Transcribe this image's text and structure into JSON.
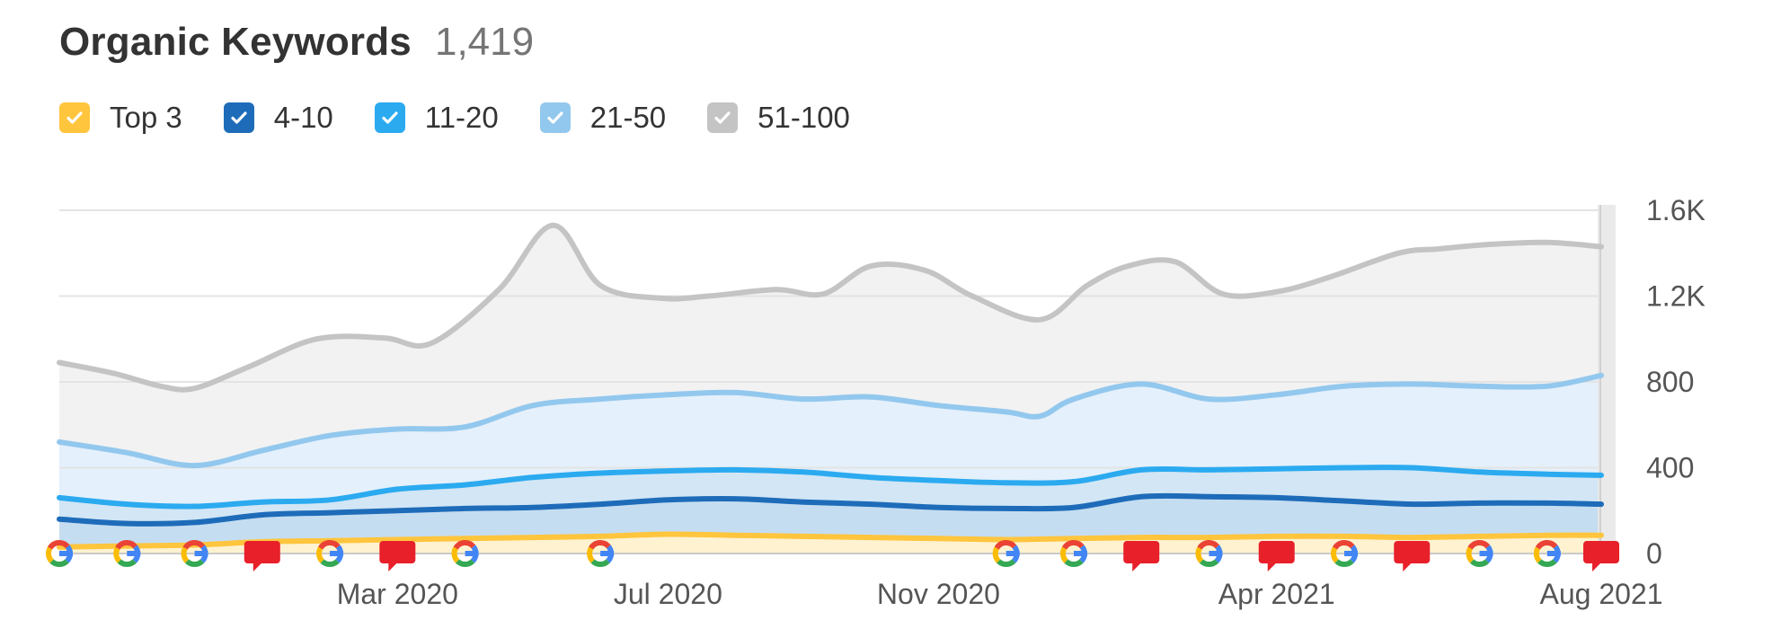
{
  "widget": {
    "title": "Organic Keywords",
    "count": "1,419"
  },
  "legend": [
    {
      "label": "Top 3",
      "color": "#FFC53D",
      "checked": true
    },
    {
      "label": "4-10",
      "color": "#1E6CB9",
      "checked": true
    },
    {
      "label": "11-20",
      "color": "#2BAAF0",
      "checked": true
    },
    {
      "label": "21-50",
      "color": "#93C8EE",
      "checked": true
    },
    {
      "label": "51-100",
      "color": "#C4C4C4",
      "checked": true
    }
  ],
  "icons": {
    "google_update": "google-update-icon",
    "note": "note-icon"
  },
  "chart_data": {
    "type": "area",
    "stacked": false,
    "grid": true,
    "y_axis_position": "right",
    "ylim": [
      0,
      1600
    ],
    "yticks": [
      {
        "value": 0,
        "label": "0"
      },
      {
        "value": 400,
        "label": "400"
      },
      {
        "value": 800,
        "label": "800"
      },
      {
        "value": 1200,
        "label": "1.2K"
      },
      {
        "value": 1600,
        "label": "1.6K"
      }
    ],
    "xlim": [
      0,
      22.8
    ],
    "xticks": [
      {
        "value": 5,
        "label": "Mar 2020"
      },
      {
        "value": 9,
        "label": "Jul 2020"
      },
      {
        "value": 13,
        "label": "Nov 2020"
      },
      {
        "value": 18,
        "label": "Apr 2021"
      },
      {
        "value": 22.8,
        "label": "Aug 2021"
      }
    ],
    "series": [
      {
        "name": "51-100",
        "color": "#C4C4C4",
        "fill": "#F2F2F2",
        "x": [
          0,
          0.8,
          1.5,
          2,
          2.8,
          3.8,
          4.8,
          5.5,
          6.5,
          7.3,
          8,
          8.9,
          9.6,
          10.6,
          11.3,
          12,
          12.8,
          13.5,
          14.5,
          15.2,
          15.8,
          16.5,
          17.2,
          18,
          18.8,
          19.8,
          20.4,
          21.1,
          22,
          22.8
        ],
        "y": [
          890,
          840,
          780,
          770,
          870,
          1000,
          1005,
          980,
          1230,
          1530,
          1250,
          1190,
          1200,
          1230,
          1210,
          1340,
          1320,
          1200,
          1090,
          1250,
          1340,
          1360,
          1210,
          1220,
          1290,
          1400,
          1420,
          1440,
          1450,
          1430
        ]
      },
      {
        "name": "21-50",
        "color": "#93C8EE",
        "fill": "#E4F0FB",
        "x": [
          0,
          1,
          2,
          3,
          4,
          5,
          6,
          7,
          8,
          9,
          10,
          11,
          12,
          13,
          14,
          14.5,
          15,
          16,
          17,
          18,
          19,
          20,
          21,
          22,
          22.8
        ],
        "y": [
          520,
          470,
          410,
          480,
          550,
          580,
          590,
          690,
          720,
          740,
          750,
          720,
          730,
          690,
          660,
          640,
          720,
          790,
          720,
          740,
          780,
          790,
          780,
          780,
          830
        ]
      },
      {
        "name": "11-20",
        "color": "#2BAAF0",
        "fill": "#D2E6F5",
        "x": [
          0,
          1,
          2,
          3,
          4,
          5,
          6,
          7,
          8,
          9,
          10,
          11,
          12,
          13,
          14,
          15,
          16,
          17,
          18,
          19,
          20,
          21,
          22,
          22.8
        ],
        "y": [
          260,
          230,
          220,
          240,
          250,
          300,
          320,
          355,
          375,
          385,
          390,
          380,
          355,
          340,
          330,
          335,
          390,
          390,
          395,
          400,
          400,
          380,
          370,
          365
        ]
      },
      {
        "name": "4-10",
        "color": "#1E6CB9",
        "fill": "#C5DDF1",
        "x": [
          0,
          1,
          2,
          3,
          4,
          5,
          6,
          7,
          8,
          9,
          10,
          11,
          12,
          13,
          14,
          15,
          16,
          17,
          18,
          19,
          20,
          21,
          22,
          22.8
        ],
        "y": [
          160,
          140,
          145,
          180,
          190,
          200,
          210,
          215,
          230,
          250,
          255,
          240,
          230,
          215,
          210,
          215,
          265,
          265,
          260,
          245,
          230,
          235,
          235,
          230
        ]
      },
      {
        "name": "Top 3",
        "color": "#FFC53D",
        "fill": "#FFF2D0",
        "x": [
          0,
          1,
          2,
          3,
          4,
          5,
          6,
          7,
          8,
          9,
          10,
          11,
          12,
          13,
          14,
          15,
          16,
          17,
          18,
          19,
          20,
          21,
          22,
          22.8
        ],
        "y": [
          30,
          35,
          40,
          55,
          60,
          65,
          70,
          75,
          80,
          90,
          85,
          80,
          75,
          70,
          65,
          70,
          75,
          75,
          80,
          80,
          75,
          80,
          85,
          85
        ]
      }
    ],
    "events": [
      {
        "x": 0,
        "type": "google"
      },
      {
        "x": 1,
        "type": "google"
      },
      {
        "x": 2,
        "type": "google"
      },
      {
        "x": 3,
        "type": "note"
      },
      {
        "x": 4,
        "type": "google"
      },
      {
        "x": 5,
        "type": "note"
      },
      {
        "x": 6,
        "type": "google"
      },
      {
        "x": 8,
        "type": "google"
      },
      {
        "x": 14,
        "type": "google"
      },
      {
        "x": 15,
        "type": "google"
      },
      {
        "x": 16,
        "type": "note"
      },
      {
        "x": 17,
        "type": "google"
      },
      {
        "x": 18,
        "type": "note"
      },
      {
        "x": 19,
        "type": "google"
      },
      {
        "x": 20,
        "type": "note"
      },
      {
        "x": 21,
        "type": "google"
      },
      {
        "x": 22,
        "type": "google"
      },
      {
        "x": 22.8,
        "type": "note"
      }
    ]
  }
}
